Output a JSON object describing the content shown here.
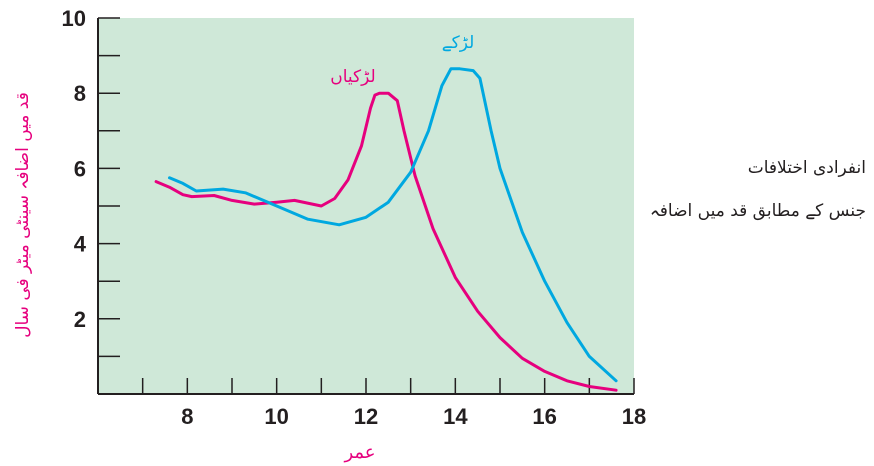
{
  "chart_data": {
    "type": "line",
    "xlabel": "عمر",
    "ylabel": "قد میں اضافہ سینٹی میٹر فی سال",
    "xlim": [
      6,
      18
    ],
    "ylim": [
      0,
      10
    ],
    "x_ticks": [
      8,
      10,
      12,
      14,
      16,
      18
    ],
    "y_ticks": [
      2,
      4,
      6,
      8,
      10
    ],
    "x_minor_step": 1,
    "y_minor_step": 1,
    "grid": false,
    "background_color": "#cfe8d8",
    "series": [
      {
        "name": "لڑکیاں",
        "color": "#e6007e",
        "x": [
          7.3,
          7.6,
          7.9,
          8.1,
          8.6,
          9.0,
          9.5,
          10.0,
          10.4,
          11.0,
          11.3,
          11.6,
          11.9,
          12.1,
          12.2,
          12.3,
          12.5,
          12.7,
          12.85,
          13.1,
          13.5,
          14.0,
          14.5,
          15.0,
          15.5,
          16.0,
          16.5,
          17.0,
          17.6
        ],
        "values": [
          5.65,
          5.5,
          5.3,
          5.25,
          5.28,
          5.15,
          5.05,
          5.1,
          5.15,
          5.0,
          5.2,
          5.7,
          6.6,
          7.6,
          7.95,
          8.0,
          8.0,
          7.8,
          7.0,
          5.8,
          4.4,
          3.1,
          2.2,
          1.5,
          0.95,
          0.6,
          0.35,
          0.2,
          0.1
        ]
      },
      {
        "name": "لڑکے",
        "color": "#00a8e0",
        "x": [
          7.6,
          7.9,
          8.2,
          8.8,
          9.3,
          10.0,
          10.7,
          11.4,
          12.0,
          12.5,
          13.0,
          13.4,
          13.7,
          13.9,
          14.1,
          14.4,
          14.55,
          14.8,
          15.0,
          15.5,
          16.0,
          16.5,
          17.0,
          17.6
        ],
        "values": [
          5.75,
          5.6,
          5.4,
          5.45,
          5.35,
          5.0,
          4.65,
          4.5,
          4.7,
          5.1,
          5.9,
          7.0,
          8.2,
          8.65,
          8.65,
          8.6,
          8.4,
          7.0,
          6.0,
          4.3,
          3.0,
          1.9,
          1.0,
          0.35
        ]
      }
    ]
  },
  "side_text": {
    "line1": "انفرادی اختلافات",
    "line2": "جنس کے مطابق قد میں اضافہ"
  }
}
